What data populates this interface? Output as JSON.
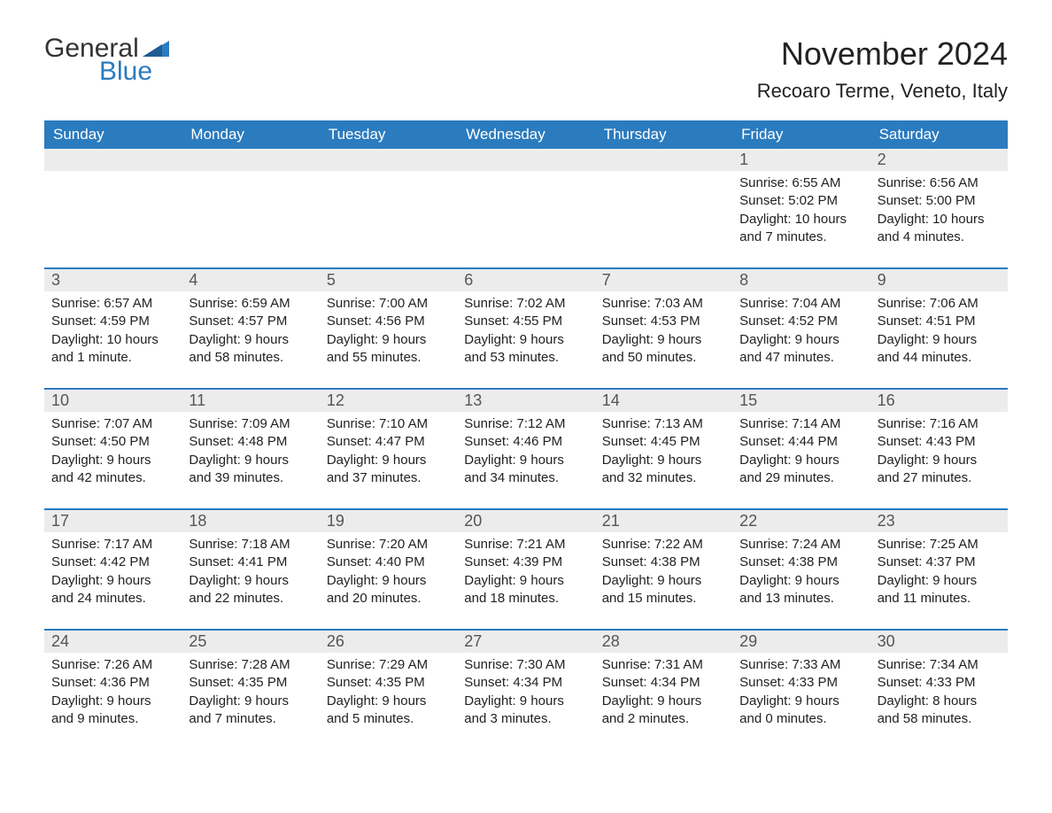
{
  "logo": {
    "general": "General",
    "blue": "Blue",
    "icon_color": "#2b7bbf",
    "general_color": "#333333"
  },
  "title": "November 2024",
  "subtitle": "Recoaro Terme, Veneto, Italy",
  "colors": {
    "header_bg": "#2b7bbf",
    "header_text": "#ffffff",
    "daynum_bg": "#ececec",
    "daynum_text": "#555555",
    "body_text": "#222222",
    "row_border": "#2b7bbf",
    "page_bg": "#ffffff"
  },
  "fonts": {
    "title_pt": 36,
    "subtitle_pt": 22,
    "weekday_pt": 17,
    "daynum_pt": 18,
    "body_pt": 15
  },
  "weekdays": [
    "Sunday",
    "Monday",
    "Tuesday",
    "Wednesday",
    "Thursday",
    "Friday",
    "Saturday"
  ],
  "weeks": [
    [
      {
        "blank": true
      },
      {
        "blank": true
      },
      {
        "blank": true
      },
      {
        "blank": true
      },
      {
        "blank": true
      },
      {
        "num": "1",
        "sunrise": "Sunrise: 6:55 AM",
        "sunset": "Sunset: 5:02 PM",
        "day1": "Daylight: 10 hours",
        "day2": "and 7 minutes."
      },
      {
        "num": "2",
        "sunrise": "Sunrise: 6:56 AM",
        "sunset": "Sunset: 5:00 PM",
        "day1": "Daylight: 10 hours",
        "day2": "and 4 minutes."
      }
    ],
    [
      {
        "num": "3",
        "sunrise": "Sunrise: 6:57 AM",
        "sunset": "Sunset: 4:59 PM",
        "day1": "Daylight: 10 hours",
        "day2": "and 1 minute."
      },
      {
        "num": "4",
        "sunrise": "Sunrise: 6:59 AM",
        "sunset": "Sunset: 4:57 PM",
        "day1": "Daylight: 9 hours",
        "day2": "and 58 minutes."
      },
      {
        "num": "5",
        "sunrise": "Sunrise: 7:00 AM",
        "sunset": "Sunset: 4:56 PM",
        "day1": "Daylight: 9 hours",
        "day2": "and 55 minutes."
      },
      {
        "num": "6",
        "sunrise": "Sunrise: 7:02 AM",
        "sunset": "Sunset: 4:55 PM",
        "day1": "Daylight: 9 hours",
        "day2": "and 53 minutes."
      },
      {
        "num": "7",
        "sunrise": "Sunrise: 7:03 AM",
        "sunset": "Sunset: 4:53 PM",
        "day1": "Daylight: 9 hours",
        "day2": "and 50 minutes."
      },
      {
        "num": "8",
        "sunrise": "Sunrise: 7:04 AM",
        "sunset": "Sunset: 4:52 PM",
        "day1": "Daylight: 9 hours",
        "day2": "and 47 minutes."
      },
      {
        "num": "9",
        "sunrise": "Sunrise: 7:06 AM",
        "sunset": "Sunset: 4:51 PM",
        "day1": "Daylight: 9 hours",
        "day2": "and 44 minutes."
      }
    ],
    [
      {
        "num": "10",
        "sunrise": "Sunrise: 7:07 AM",
        "sunset": "Sunset: 4:50 PM",
        "day1": "Daylight: 9 hours",
        "day2": "and 42 minutes."
      },
      {
        "num": "11",
        "sunrise": "Sunrise: 7:09 AM",
        "sunset": "Sunset: 4:48 PM",
        "day1": "Daylight: 9 hours",
        "day2": "and 39 minutes."
      },
      {
        "num": "12",
        "sunrise": "Sunrise: 7:10 AM",
        "sunset": "Sunset: 4:47 PM",
        "day1": "Daylight: 9 hours",
        "day2": "and 37 minutes."
      },
      {
        "num": "13",
        "sunrise": "Sunrise: 7:12 AM",
        "sunset": "Sunset: 4:46 PM",
        "day1": "Daylight: 9 hours",
        "day2": "and 34 minutes."
      },
      {
        "num": "14",
        "sunrise": "Sunrise: 7:13 AM",
        "sunset": "Sunset: 4:45 PM",
        "day1": "Daylight: 9 hours",
        "day2": "and 32 minutes."
      },
      {
        "num": "15",
        "sunrise": "Sunrise: 7:14 AM",
        "sunset": "Sunset: 4:44 PM",
        "day1": "Daylight: 9 hours",
        "day2": "and 29 minutes."
      },
      {
        "num": "16",
        "sunrise": "Sunrise: 7:16 AM",
        "sunset": "Sunset: 4:43 PM",
        "day1": "Daylight: 9 hours",
        "day2": "and 27 minutes."
      }
    ],
    [
      {
        "num": "17",
        "sunrise": "Sunrise: 7:17 AM",
        "sunset": "Sunset: 4:42 PM",
        "day1": "Daylight: 9 hours",
        "day2": "and 24 minutes."
      },
      {
        "num": "18",
        "sunrise": "Sunrise: 7:18 AM",
        "sunset": "Sunset: 4:41 PM",
        "day1": "Daylight: 9 hours",
        "day2": "and 22 minutes."
      },
      {
        "num": "19",
        "sunrise": "Sunrise: 7:20 AM",
        "sunset": "Sunset: 4:40 PM",
        "day1": "Daylight: 9 hours",
        "day2": "and 20 minutes."
      },
      {
        "num": "20",
        "sunrise": "Sunrise: 7:21 AM",
        "sunset": "Sunset: 4:39 PM",
        "day1": "Daylight: 9 hours",
        "day2": "and 18 minutes."
      },
      {
        "num": "21",
        "sunrise": "Sunrise: 7:22 AM",
        "sunset": "Sunset: 4:38 PM",
        "day1": "Daylight: 9 hours",
        "day2": "and 15 minutes."
      },
      {
        "num": "22",
        "sunrise": "Sunrise: 7:24 AM",
        "sunset": "Sunset: 4:38 PM",
        "day1": "Daylight: 9 hours",
        "day2": "and 13 minutes."
      },
      {
        "num": "23",
        "sunrise": "Sunrise: 7:25 AM",
        "sunset": "Sunset: 4:37 PM",
        "day1": "Daylight: 9 hours",
        "day2": "and 11 minutes."
      }
    ],
    [
      {
        "num": "24",
        "sunrise": "Sunrise: 7:26 AM",
        "sunset": "Sunset: 4:36 PM",
        "day1": "Daylight: 9 hours",
        "day2": "and 9 minutes."
      },
      {
        "num": "25",
        "sunrise": "Sunrise: 7:28 AM",
        "sunset": "Sunset: 4:35 PM",
        "day1": "Daylight: 9 hours",
        "day2": "and 7 minutes."
      },
      {
        "num": "26",
        "sunrise": "Sunrise: 7:29 AM",
        "sunset": "Sunset: 4:35 PM",
        "day1": "Daylight: 9 hours",
        "day2": "and 5 minutes."
      },
      {
        "num": "27",
        "sunrise": "Sunrise: 7:30 AM",
        "sunset": "Sunset: 4:34 PM",
        "day1": "Daylight: 9 hours",
        "day2": "and 3 minutes."
      },
      {
        "num": "28",
        "sunrise": "Sunrise: 7:31 AM",
        "sunset": "Sunset: 4:34 PM",
        "day1": "Daylight: 9 hours",
        "day2": "and 2 minutes."
      },
      {
        "num": "29",
        "sunrise": "Sunrise: 7:33 AM",
        "sunset": "Sunset: 4:33 PM",
        "day1": "Daylight: 9 hours",
        "day2": "and 0 minutes."
      },
      {
        "num": "30",
        "sunrise": "Sunrise: 7:34 AM",
        "sunset": "Sunset: 4:33 PM",
        "day1": "Daylight: 8 hours",
        "day2": "and 58 minutes."
      }
    ]
  ]
}
